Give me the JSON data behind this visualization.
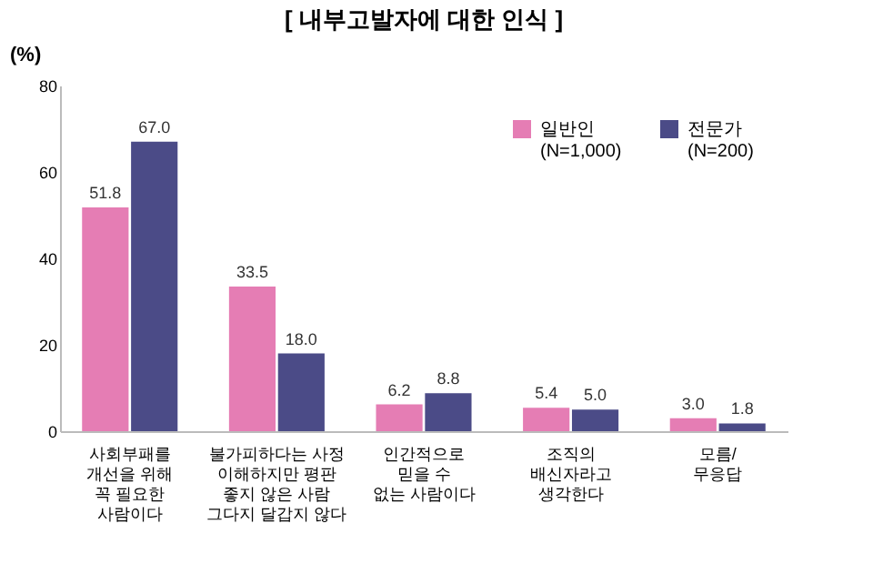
{
  "chart_data": {
    "type": "bar",
    "title": "[ 내부고발자에 대한 인식 ]",
    "ylabel": "(%)",
    "categories": [
      "사회부패를\n개선을 위해\n꼭 필요한\n사람이다",
      "불가피하다는 사정\n이해하지만 평판\n좋지 않은 사람\n그다지 달갑지 않다",
      "인간적으로\n믿을 수\n없는 사람이다",
      "조직의\n배신자라고\n생각한다",
      "모름/\n무응답"
    ],
    "series": [
      {
        "name": "일반인\n(N=1,000)",
        "color": "#e57db4",
        "values": [
          51.8,
          33.5,
          6.2,
          5.4,
          3.0
        ],
        "value_labels": [
          "51.8",
          "33.5",
          "6.2",
          "5.4",
          "3.0"
        ]
      },
      {
        "name": "전문가\n(N=200)",
        "color": "#4b4b87",
        "values": [
          67.0,
          18.0,
          8.8,
          5.0,
          1.8
        ],
        "value_labels": [
          "67.0",
          "18.0",
          "8.8",
          "5.0",
          "1.8"
        ]
      }
    ],
    "ylim": [
      0,
      80
    ],
    "yticks": [
      0,
      20,
      40,
      60,
      80
    ],
    "grid": false,
    "legend": "top right"
  }
}
